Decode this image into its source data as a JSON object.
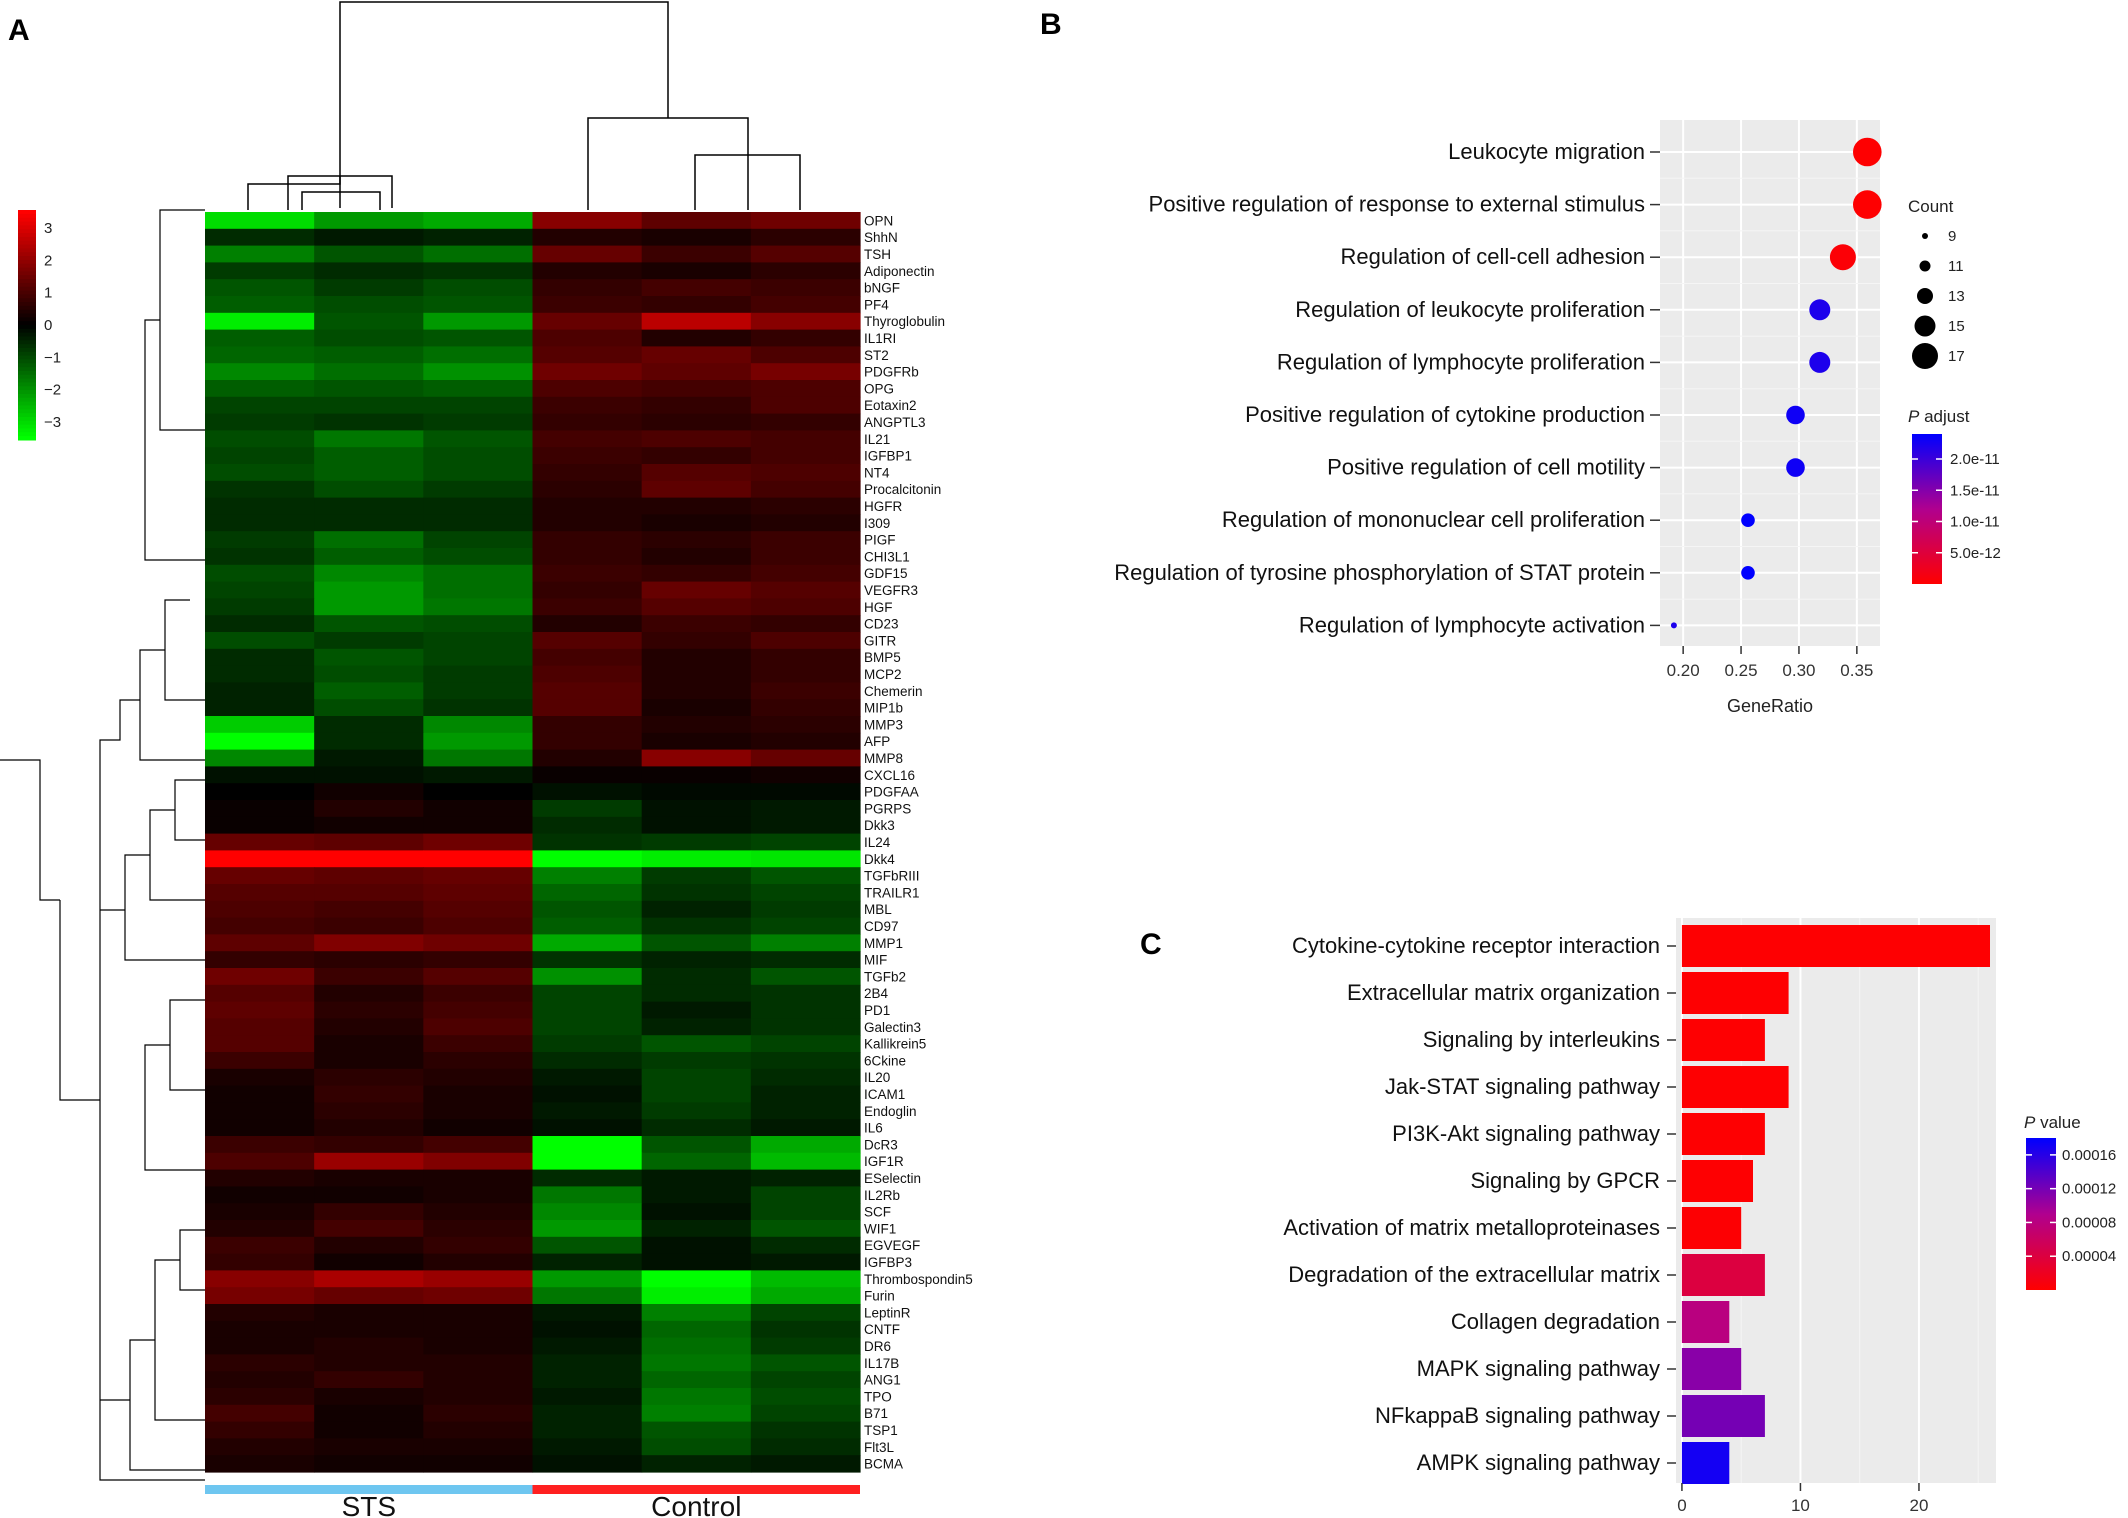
{
  "figure": {
    "panel_labels": [
      "A",
      "B",
      "C"
    ]
  },
  "chart_data": [
    {
      "panel": "A",
      "type": "heatmap",
      "color_scale": {
        "ticks": [
          "3",
          "2",
          "1",
          "0",
          "−1",
          "−2",
          "−3"
        ],
        "low_color": "#00ff00",
        "mid_color": "#000000",
        "high_color": "#ff0000"
      },
      "groups": [
        {
          "name": "STS",
          "color": "#6ec6f0",
          "columns": 3
        },
        {
          "name": "Control",
          "color": "#ff2020",
          "columns": 3
        }
      ],
      "rows": [
        "OPN",
        "ShhN",
        "TSH",
        "Adiponectin",
        "bNGF",
        "PF4",
        "Thyroglobulin",
        "IL1RI",
        "ST2",
        "PDGFRb",
        "OPG",
        "Eotaxin2",
        "ANGPTL3",
        "IL21",
        "IGFBP1",
        "NT4",
        "Procalcitonin",
        "HGFR",
        "I309",
        "PIGF",
        "CHI3L1",
        "GDF15",
        "VEGFR3",
        "HGF",
        "CD23",
        "GITR",
        "BMP5",
        "MCP2",
        "Chemerin",
        "MIP1b",
        "MMP3",
        "AFP",
        "MMP8",
        "CXCL16",
        "PDGFAA",
        "PGRPS",
        "Dkk3",
        "IL24",
        "Dkk4",
        "TGFbRIII",
        "TRAILR1",
        "MBL",
        "CD97",
        "MMP1",
        "MIF",
        "TGFb2",
        "2B4",
        "PD1",
        "Galectin3",
        "Kallikrein5",
        "6Ckine",
        "IL20",
        "ICAM1",
        "Endoglin",
        "IL6",
        "DcR3",
        "IGF1R",
        "ESelectin",
        "IL2Rb",
        "SCF",
        "WIF1",
        "EGVEGF",
        "IGFBP3",
        "Thrombospondin5",
        "Furin",
        "LeptinR",
        "CNTF",
        "DR6",
        "IL17B",
        "ANG1",
        "TPO",
        "B71",
        "TSP1",
        "Flt3L",
        "BCMA"
      ],
      "values": [
        [
          -2.6,
          -1.8,
          -2.0,
          1.6,
          1.1,
          1.3
        ],
        [
          -0.5,
          -0.3,
          -0.4,
          0.4,
          0.3,
          0.5
        ],
        [
          -1.5,
          -1.0,
          -1.3,
          1.2,
          0.7,
          1.0
        ],
        [
          -0.7,
          -0.5,
          -0.6,
          0.4,
          0.3,
          0.5
        ],
        [
          -1.0,
          -0.7,
          -0.9,
          0.6,
          0.8,
          0.7
        ],
        [
          -1.1,
          -0.9,
          -1.0,
          0.7,
          0.6,
          0.8
        ],
        [
          -2.8,
          -1.0,
          -1.8,
          1.2,
          2.2,
          1.6
        ],
        [
          -1.1,
          -0.9,
          -1.0,
          0.9,
          0.4,
          0.6
        ],
        [
          -1.2,
          -1.1,
          -1.3,
          1.0,
          1.2,
          0.9
        ],
        [
          -1.6,
          -1.3,
          -1.7,
          1.3,
          1.1,
          1.4
        ],
        [
          -1.1,
          -1.0,
          -1.1,
          0.9,
          0.8,
          0.9
        ],
        [
          -0.8,
          -0.8,
          -0.8,
          0.7,
          0.6,
          0.9
        ],
        [
          -0.7,
          -0.6,
          -0.7,
          0.6,
          0.5,
          0.6
        ],
        [
          -0.9,
          -1.4,
          -1.0,
          0.8,
          0.9,
          0.8
        ],
        [
          -0.8,
          -1.1,
          -0.9,
          0.7,
          0.6,
          0.8
        ],
        [
          -0.9,
          -1.1,
          -0.9,
          0.6,
          1.0,
          0.9
        ],
        [
          -0.6,
          -0.9,
          -0.7,
          0.5,
          1.1,
          0.8
        ],
        [
          -0.5,
          -0.5,
          -0.5,
          0.4,
          0.4,
          0.5
        ],
        [
          -0.5,
          -0.5,
          -0.5,
          0.4,
          0.3,
          0.4
        ],
        [
          -0.7,
          -1.3,
          -0.8,
          0.6,
          0.5,
          0.7
        ],
        [
          -0.6,
          -1.1,
          -0.9,
          0.6,
          0.4,
          0.7
        ],
        [
          -0.9,
          -1.6,
          -1.3,
          0.7,
          0.6,
          0.8
        ],
        [
          -0.8,
          -1.8,
          -1.3,
          0.6,
          1.2,
          1.0
        ],
        [
          -0.7,
          -1.8,
          -1.4,
          0.7,
          1.0,
          0.9
        ],
        [
          -0.5,
          -1.0,
          -0.9,
          0.4,
          0.7,
          0.6
        ],
        [
          -0.9,
          -0.7,
          -0.8,
          1.0,
          0.6,
          0.9
        ],
        [
          -0.5,
          -1.0,
          -0.8,
          0.8,
          0.4,
          0.6
        ],
        [
          -0.5,
          -0.9,
          -0.7,
          0.9,
          0.4,
          0.6
        ],
        [
          -0.4,
          -1.1,
          -0.7,
          1.0,
          0.4,
          0.7
        ],
        [
          -0.4,
          -0.9,
          -0.6,
          1.0,
          0.3,
          0.6
        ],
        [
          -2.4,
          -0.5,
          -1.6,
          0.6,
          0.4,
          0.5
        ],
        [
          -3.0,
          -0.5,
          -1.8,
          0.6,
          0.3,
          0.4
        ],
        [
          -1.6,
          -0.3,
          -1.4,
          0.4,
          1.6,
          1.2
        ],
        [
          -0.2,
          -0.2,
          -0.3,
          0.1,
          0.1,
          0.2
        ],
        [
          0.0,
          0.2,
          0.0,
          -0.2,
          -0.1,
          -0.1
        ],
        [
          0.1,
          0.4,
          0.2,
          -0.7,
          -0.2,
          -0.3
        ],
        [
          0.1,
          0.2,
          0.2,
          -0.5,
          -0.2,
          -0.3
        ],
        [
          1.2,
          1.1,
          1.3,
          -0.6,
          -0.7,
          -0.8
        ],
        [
          3.0,
          3.0,
          3.0,
          -3.0,
          -2.8,
          -2.7
        ],
        [
          1.2,
          1.1,
          1.2,
          -1.5,
          -0.7,
          -1.0
        ],
        [
          1.0,
          1.0,
          1.1,
          -1.2,
          -0.6,
          -0.8
        ],
        [
          0.9,
          0.8,
          1.0,
          -1.0,
          -0.4,
          -0.7
        ],
        [
          0.8,
          0.7,
          0.9,
          -1.1,
          -0.6,
          -0.8
        ],
        [
          1.1,
          1.5,
          1.3,
          -2.0,
          -1.0,
          -1.5
        ],
        [
          0.6,
          0.5,
          0.6,
          -0.6,
          -0.4,
          -0.5
        ],
        [
          1.3,
          0.7,
          1.0,
          -1.7,
          -0.5,
          -1.0
        ],
        [
          1.0,
          0.4,
          0.7,
          -0.8,
          -0.5,
          -0.6
        ],
        [
          1.1,
          0.5,
          0.8,
          -0.8,
          -0.3,
          -0.6
        ],
        [
          1.0,
          0.4,
          0.9,
          -0.8,
          -0.4,
          -0.6
        ],
        [
          1.0,
          0.3,
          0.7,
          -0.7,
          -1.0,
          -0.8
        ],
        [
          0.7,
          0.3,
          0.5,
          -0.5,
          -0.7,
          -0.6
        ],
        [
          0.3,
          0.5,
          0.4,
          -0.3,
          -0.8,
          -0.5
        ],
        [
          0.2,
          0.6,
          0.3,
          -0.2,
          -0.8,
          -0.4
        ],
        [
          0.2,
          0.5,
          0.3,
          -0.3,
          -0.7,
          -0.4
        ],
        [
          0.2,
          0.4,
          0.2,
          -0.2,
          -0.5,
          -0.3
        ],
        [
          0.7,
          0.6,
          0.8,
          -3.0,
          -1.0,
          -2.0
        ],
        [
          0.9,
          1.8,
          1.5,
          -3.0,
          -1.2,
          -2.2
        ],
        [
          0.4,
          0.3,
          0.3,
          -0.5,
          -0.3,
          -0.4
        ],
        [
          0.2,
          0.2,
          0.3,
          -1.4,
          -0.3,
          -0.8
        ],
        [
          0.3,
          0.6,
          0.4,
          -1.6,
          -0.2,
          -0.8
        ],
        [
          0.4,
          0.8,
          0.5,
          -1.8,
          -0.4,
          -1.0
        ],
        [
          0.7,
          0.4,
          0.6,
          -1.0,
          -0.2,
          -0.5
        ],
        [
          0.6,
          0.2,
          0.4,
          -0.4,
          -0.2,
          -0.3
        ],
        [
          1.6,
          2.0,
          1.8,
          -1.8,
          -3.0,
          -2.2
        ],
        [
          1.4,
          1.2,
          1.3,
          -1.4,
          -2.8,
          -2.0
        ],
        [
          0.4,
          0.3,
          0.3,
          -0.3,
          -1.5,
          -0.8
        ],
        [
          0.3,
          0.3,
          0.3,
          -0.2,
          -1.2,
          -0.6
        ],
        [
          0.3,
          0.4,
          0.3,
          -0.3,
          -1.3,
          -0.7
        ],
        [
          0.5,
          0.4,
          0.4,
          -0.4,
          -1.4,
          -1.0
        ],
        [
          0.4,
          0.6,
          0.4,
          -0.4,
          -1.2,
          -0.8
        ],
        [
          0.5,
          0.3,
          0.4,
          -0.3,
          -1.4,
          -0.9
        ],
        [
          0.8,
          0.2,
          0.5,
          -0.4,
          -1.5,
          -0.8
        ],
        [
          0.6,
          0.2,
          0.4,
          -0.4,
          -1.0,
          -0.6
        ],
        [
          0.4,
          0.3,
          0.3,
          -0.3,
          -0.9,
          -0.5
        ],
        [
          0.3,
          0.2,
          0.2,
          -0.2,
          -0.4,
          -0.3
        ]
      ]
    },
    {
      "panel": "B",
      "type": "scatter",
      "xlabel": "GeneRatio",
      "xlim": [
        0.18,
        0.37
      ],
      "xticks": [
        "0.20",
        "0.25",
        "0.30",
        "0.35"
      ],
      "xtick_values": [
        0.2,
        0.25,
        0.3,
        0.35
      ],
      "terms": [
        "Leukocyte migration",
        "Positive regulation of response to external stimulus",
        "Regulation of cell-cell adhesion",
        "Regulation of leukocyte proliferation",
        "Regulation of lymphocyte proliferation",
        "Positive regulation of cytokine production",
        "Positive regulation of cell motility",
        "Regulation of mononuclear cell proliferation",
        "Regulation of tyrosine phosphorylation of STAT protein",
        "Regulation of lymphocyte activation"
      ],
      "gene_ratio": [
        0.359,
        0.359,
        0.338,
        0.318,
        0.318,
        0.297,
        0.297,
        0.256,
        0.256,
        0.192
      ],
      "count": [
        18,
        18,
        17,
        15,
        15,
        14,
        14,
        12,
        12,
        9
      ],
      "p_adjust": [
        1e-13,
        1e-13,
        5e-13,
        2.2e-11,
        2.2e-11,
        2.3e-11,
        2.3e-11,
        2.4e-11,
        2.4e-11,
        2.2e-11
      ],
      "size_legend": {
        "title": "Count",
        "labels": [
          "9",
          "11",
          "13",
          "15",
          "17"
        ],
        "values": [
          9,
          11,
          13,
          15,
          17
        ]
      },
      "color_legend": {
        "title_italic": "P",
        "title_rest": " adjust",
        "labels": [
          "2.0e-11",
          "1.5e-11",
          "1.0e-11",
          "5.0e-12"
        ],
        "values": [
          2e-11,
          1.5e-11,
          1e-11,
          5e-12
        ],
        "range": [
          0,
          2.4e-11
        ],
        "low_color": "#ff0000",
        "high_color": "#0000ff"
      }
    },
    {
      "panel": "C",
      "type": "bar",
      "orientation": "horizontal",
      "xlim": [
        -0.5,
        26.5
      ],
      "xticks": [
        "0",
        "10",
        "20"
      ],
      "xtick_values": [
        0,
        10,
        20
      ],
      "terms": [
        "Cytokine-cytokine receptor interaction",
        "Extracellular matrix organization",
        "Signaling by interleukins",
        "Jak-STAT signaling pathway",
        "PI3K-Akt signaling pathway",
        "Signaling by GPCR",
        "Activation of matrix metalloproteinases",
        "Degradation of the extracellular matrix",
        "Collagen degradation",
        "MAPK signaling pathway",
        "NFkappaB signaling pathway",
        "AMPK signaling pathway"
      ],
      "values": [
        26,
        9,
        7,
        9,
        7,
        6,
        5,
        7,
        4,
        5,
        7,
        4
      ],
      "p_value": [
        1e-06,
        1e-06,
        1e-06,
        1e-06,
        1e-06,
        1e-06,
        2e-06,
        4e-05,
        8e-05,
        0.00011,
        0.00012,
        0.00017
      ],
      "color_legend": {
        "title_italic": "P",
        "title_rest": " value",
        "labels": [
          "0.00016",
          "0.00012",
          "0.00008",
          "0.00004"
        ],
        "values": [
          0.00016,
          0.00012,
          8e-05,
          4e-05
        ],
        "range": [
          0,
          0.00018
        ],
        "low_color": "#ff0000",
        "high_color": "#0000ff"
      }
    }
  ]
}
